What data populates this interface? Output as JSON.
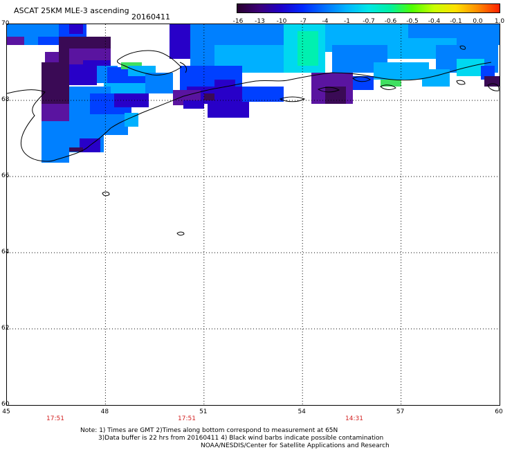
{
  "header": {
    "title": "ASCAT 25KM MLE-3 ascending",
    "date": "20160411"
  },
  "colorbar": {
    "labels": [
      "-16",
      "-13",
      "-10",
      "-7",
      "-4",
      "-1",
      "-0.7",
      "-0.6",
      "-0.5",
      "-0.4",
      "-0.1",
      "0.0",
      "1.0"
    ],
    "colors": [
      "#28002d",
      "#3c0078",
      "#1e00c8",
      "#0028ff",
      "#0070ff",
      "#00b4ff",
      "#00e6e6",
      "#00f0a0",
      "#50ff00",
      "#c8ff00",
      "#ffe000",
      "#ff8c00",
      "#ff2000"
    ]
  },
  "axes": {
    "lat_labels": [
      "70",
      "68",
      "66",
      "64",
      "62",
      "60"
    ],
    "lon_labels": [
      "45",
      "48",
      "51",
      "54",
      "57",
      "60"
    ],
    "lat_values": [
      70,
      68,
      66,
      64,
      62,
      60
    ],
    "lon_values": [
      45,
      48,
      51,
      54,
      57,
      60
    ]
  },
  "times": [
    "17:51",
    "17:51",
    "14:31"
  ],
  "notes": {
    "line1": "Note: 1) Times are GMT 2)Times along bottom correspond to measurement at 65N",
    "line2": "3)Data buffer is 22 hrs from 20160411 4) Black wind barbs indicate possible contamination",
    "line3": "NOAA/NESDIS/Center for Satellite Applications and Research"
  },
  "swath_colors": {
    "dark_purple": "#3a0a55",
    "purple": "#5a14a0",
    "indigo": "#2800c8",
    "blue": "#0040ff",
    "med_blue": "#0080ff",
    "light_blue": "#00b0ff",
    "cyan": "#00d8f0",
    "aqua": "#00f0b0",
    "green": "#40e060"
  }
}
